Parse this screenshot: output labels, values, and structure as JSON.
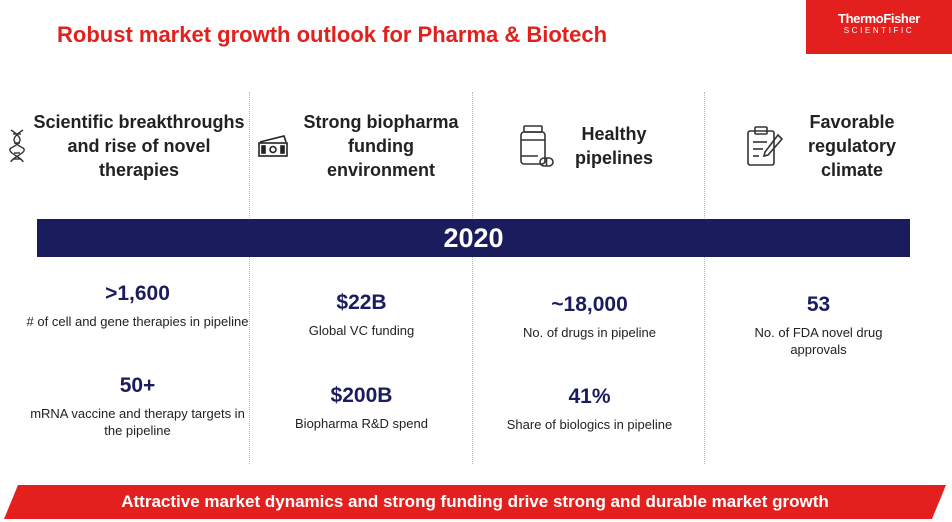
{
  "header": {
    "title": "Robust market growth outlook for Pharma & Biotech",
    "logo_line1": "ThermoFisher",
    "logo_line2": "SCIENTIFIC"
  },
  "colors": {
    "red": "#e4201f",
    "navy": "#1b1c5e"
  },
  "columns": [
    {
      "icon": "dna-icon",
      "heading": "Scientific breakthroughs and rise of novel therapies"
    },
    {
      "icon": "money-icon",
      "heading": "Strong biopharma funding environment"
    },
    {
      "icon": "medicine-bottle-icon",
      "heading": "Healthy pipelines"
    },
    {
      "icon": "clipboard-icon",
      "heading": "Favorable regulatory climate"
    }
  ],
  "year_band": "2020",
  "stats": [
    {
      "value": ">1,600",
      "desc": "# of cell and gene therapies in pipeline"
    },
    {
      "value": "50+",
      "desc": "mRNA vaccine and therapy targets in the pipeline"
    },
    {
      "value": "$22B",
      "desc": "Global VC funding"
    },
    {
      "value": "$200B",
      "desc": "Biopharma R&D spend"
    },
    {
      "value": "~18,000",
      "desc": "No. of drugs in pipeline"
    },
    {
      "value": "41%",
      "desc": "Share of biologics in pipeline"
    },
    {
      "value": "53",
      "desc": "No. of FDA novel drug approvals"
    }
  ],
  "footer": "Attractive market dynamics and strong funding drive strong and durable market growth"
}
